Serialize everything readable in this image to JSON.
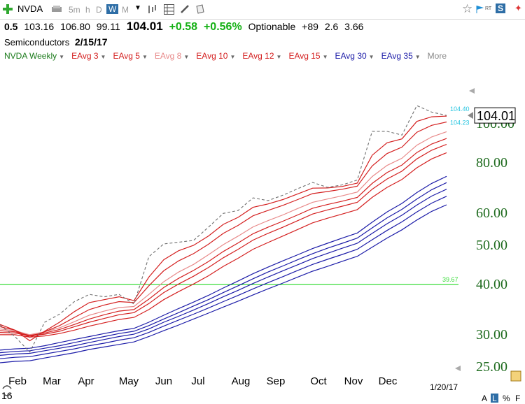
{
  "toolbar": {
    "symbol": "NVDA",
    "intervals": [
      "5m",
      "h",
      "D",
      "W",
      "M"
    ],
    "selected_interval": "W"
  },
  "quote": {
    "change_pct_prev": "0.5",
    "open": "103.16",
    "high": "106.80",
    "low": "99.11",
    "last": "104.01",
    "change": "+0.58",
    "change_pct": "+0.56%",
    "optionable": "Optionable",
    "extra1": "+89",
    "extra2": "2.6",
    "extra3": "3.66"
  },
  "sector": {
    "name": "Semiconductors",
    "date": "2/15/17"
  },
  "studies": [
    {
      "label": "NVDA Weekly",
      "color": "#1a7a1a"
    },
    {
      "label": "EAvg 3",
      "color": "#d42020"
    },
    {
      "label": "EAvg 5",
      "color": "#d42020"
    },
    {
      "label": "EAvg 8",
      "color": "#e88a8a"
    },
    {
      "label": "EAvg 10",
      "color": "#d42020"
    },
    {
      "label": "EAvg 12",
      "color": "#d42020"
    },
    {
      "label": "EAvg 15",
      "color": "#d42020"
    },
    {
      "label": "EAvg 30",
      "color": "#1c1ca8"
    },
    {
      "label": "EAvg 35",
      "color": "#1c1ca8"
    },
    {
      "label": "More",
      "color": "#888888"
    }
  ],
  "chart_data": {
    "type": "line",
    "y_scale": "log",
    "ylim": [
      24,
      118
    ],
    "y_ticks": [
      "25.00",
      "30.00",
      "40.00",
      "50.00",
      "60.00",
      "80.00",
      "100.00"
    ],
    "y_tick_values": [
      25,
      30,
      40,
      50,
      60,
      80,
      100
    ],
    "x_labels": [
      "Feb",
      "Mar",
      "Apr",
      "May",
      "Jun",
      "Jul",
      "Aug",
      "Sep",
      "Oct",
      "Nov",
      "Dec"
    ],
    "x_year_label": "16",
    "date_label": "1/20/17",
    "last_price_label": "104.01",
    "last_price": 104.01,
    "upper_tag": "104.40",
    "upper_tag_value": 104.4,
    "lower_tag": "104.23",
    "lower_tag_value": 104.23,
    "support_line": {
      "value": 39.67,
      "label": "39.67",
      "color": "#3adc3a"
    },
    "price_series": {
      "name": "NVDA Weekly",
      "color": "#707070",
      "values": [
        31.5,
        29.5,
        27.0,
        32.0,
        33.5,
        36.0,
        37.5,
        37.0,
        37.5,
        35.5,
        46.5,
        50.0,
        50.5,
        51.0,
        55.0,
        59.5,
        60.5,
        65.0,
        64.0,
        66.0,
        68.5,
        71.0,
        69.0,
        70.0,
        72.0,
        95.0,
        95.0,
        93.0,
        110.0,
        106.0,
        104.01
      ]
    },
    "series": [
      {
        "name": "EAvg 3",
        "color": "#d42020",
        "values": [
          31.6,
          30.6,
          28.8,
          30.4,
          32.0,
          34.0,
          35.8,
          36.4,
          37.0,
          36.2,
          41.4,
          45.7,
          48.1,
          49.6,
          52.3,
          55.9,
          58.2,
          61.6,
          62.8,
          64.4,
          66.5,
          68.7,
          68.8,
          69.4,
          70.7,
          82.9,
          89.0,
          91.0,
          100.5,
          103.2,
          103.6
        ]
      },
      {
        "name": "EAvg 5",
        "color": "#d42020",
        "values": [
          31.2,
          30.6,
          29.4,
          30.3,
          31.4,
          32.9,
          34.4,
          35.3,
          36.0,
          35.8,
          39.4,
          42.9,
          45.4,
          47.3,
          49.9,
          53.1,
          55.6,
          58.7,
          60.5,
          62.3,
          64.4,
          66.6,
          67.4,
          68.3,
          69.5,
          78.0,
          83.7,
          86.8,
          94.5,
          98.3,
          100.2
        ]
      },
      {
        "name": "EAvg 8",
        "color": "#e88a8a",
        "values": [
          30.8,
          30.5,
          29.8,
          30.3,
          31.0,
          32.1,
          33.3,
          34.1,
          34.8,
          35.0,
          37.5,
          40.3,
          42.6,
          44.5,
          47.0,
          49.8,
          52.3,
          55.1,
          57.1,
          59.0,
          61.2,
          63.4,
          64.6,
          65.8,
          67.2,
          73.4,
          78.2,
          81.5,
          87.8,
          92.0,
          94.8
        ]
      },
      {
        "name": "EAvg 10",
        "color": "#d42020",
        "values": [
          30.5,
          30.3,
          29.7,
          30.1,
          30.7,
          31.6,
          32.6,
          33.4,
          34.1,
          34.4,
          36.5,
          39.0,
          41.1,
          43.0,
          45.2,
          47.9,
          50.3,
          53.0,
          55.0,
          56.9,
          59.0,
          61.3,
          62.6,
          63.8,
          65.2,
          70.6,
          75.1,
          78.4,
          84.2,
          88.4,
          91.2
        ]
      },
      {
        "name": "EAvg 12",
        "color": "#d42020",
        "values": [
          30.2,
          30.1,
          29.6,
          29.9,
          30.4,
          31.2,
          32.0,
          32.7,
          33.4,
          33.8,
          35.6,
          37.9,
          39.8,
          41.6,
          43.7,
          46.2,
          48.5,
          51.1,
          53.1,
          55.0,
          57.1,
          59.3,
          60.7,
          62.0,
          63.4,
          68.3,
          72.4,
          75.7,
          81.2,
          85.3,
          88.2
        ]
      },
      {
        "name": "EAvg 15",
        "color": "#d42020",
        "values": [
          29.8,
          29.8,
          29.4,
          29.6,
          30.0,
          30.6,
          31.3,
          31.9,
          32.5,
          32.9,
          34.4,
          36.4,
          38.1,
          39.8,
          41.7,
          44.0,
          46.1,
          48.5,
          50.4,
          52.3,
          54.3,
          56.4,
          57.9,
          59.3,
          60.8,
          65.2,
          69.0,
          72.2,
          77.2,
          81.2,
          84.1
        ]
      },
      {
        "name": "EAvg 30",
        "color": "#1c1ca8",
        "values": [
          27.3,
          27.5,
          27.6,
          28.0,
          28.5,
          29.0,
          29.5,
          30.0,
          30.5,
          30.9,
          32.0,
          33.3,
          34.6,
          35.9,
          37.3,
          38.9,
          40.5,
          42.2,
          43.8,
          45.4,
          47.0,
          48.7,
          50.2,
          51.7,
          53.2,
          56.6,
          60.0,
          63.0,
          67.0,
          70.6,
          73.5
        ]
      },
      {
        "name": "EAvg 35",
        "color": "#1c1ca8",
        "values": [
          26.9,
          27.1,
          27.2,
          27.6,
          28.0,
          28.5,
          29.0,
          29.5,
          30.0,
          30.4,
          31.4,
          32.6,
          33.8,
          35.1,
          36.4,
          37.9,
          39.4,
          41.0,
          42.6,
          44.1,
          45.7,
          47.3,
          48.8,
          50.2,
          51.7,
          54.8,
          58.0,
          60.9,
          64.6,
          68.1,
          70.9
        ]
      },
      {
        "name": "",
        "color": "#1c1ca8",
        "values": [
          26.5,
          26.7,
          26.8,
          27.2,
          27.6,
          28.0,
          28.5,
          29.0,
          29.5,
          29.9,
          30.8,
          32.0,
          33.1,
          34.3,
          35.6,
          37.0,
          38.4,
          39.9,
          41.4,
          42.9,
          44.4,
          46.0,
          47.4,
          48.8,
          50.2,
          53.1,
          56.1,
          58.9,
          62.4,
          65.7,
          68.3
        ]
      },
      {
        "name": "",
        "color": "#1c1ca8",
        "values": [
          26.0,
          26.2,
          26.3,
          26.7,
          27.1,
          27.5,
          28.0,
          28.4,
          28.9,
          29.3,
          30.2,
          31.3,
          32.4,
          33.5,
          34.7,
          36.0,
          37.3,
          38.7,
          40.1,
          41.5,
          43.0,
          44.5,
          45.8,
          47.1,
          48.5,
          51.2,
          54.0,
          56.7,
          60.0,
          63.1,
          65.6
        ]
      },
      {
        "name": "",
        "color": "#1c1ca8",
        "values": [
          25.4,
          25.6,
          25.7,
          26.1,
          26.5,
          26.9,
          27.4,
          27.8,
          28.2,
          28.6,
          29.5,
          30.5,
          31.5,
          32.6,
          33.7,
          34.9,
          36.1,
          37.4,
          38.7,
          40.0,
          41.4,
          42.8,
          44.0,
          45.3,
          46.6,
          49.1,
          51.7,
          54.2,
          57.3,
          60.2,
          62.5
        ]
      }
    ]
  }
}
